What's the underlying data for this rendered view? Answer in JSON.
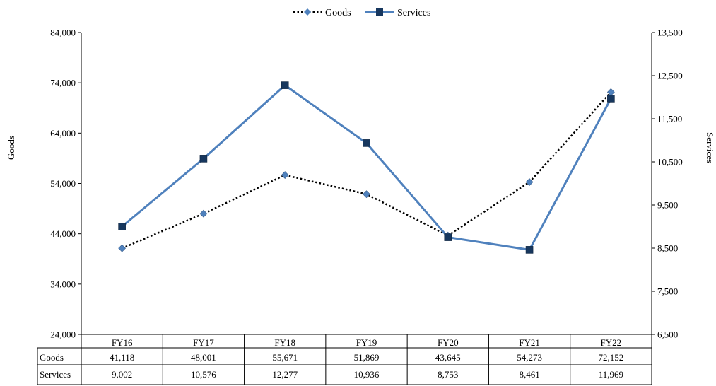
{
  "chart_data": {
    "type": "line",
    "categories": [
      "FY16",
      "FY17",
      "FY18",
      "FY19",
      "FY20",
      "FY21",
      "FY22"
    ],
    "series": [
      {
        "name": "Goods",
        "axis": "left",
        "values": [
          41118,
          48001,
          55671,
          51869,
          43645,
          54273,
          72152
        ],
        "color": "#000000",
        "line_style": "dotted",
        "marker": "diamond",
        "marker_color": "#4F81BD"
      },
      {
        "name": "Services",
        "axis": "right",
        "values": [
          9002,
          10576,
          12277,
          10936,
          8753,
          8461,
          11969
        ],
        "color": "#4F81BD",
        "line_style": "solid",
        "marker": "square",
        "marker_color": "#17375E"
      }
    ],
    "ylabel_left": "Goods",
    "ylabel_right": "Services",
    "ylim_left": [
      24000,
      84000
    ],
    "yticks_left": [
      "24,000",
      "34,000",
      "44,000",
      "54,000",
      "64,000",
      "74,000",
      "84,000"
    ],
    "ylim_right": [
      6500,
      13500
    ],
    "yticks_right": [
      "6,500",
      "7,500",
      "8,500",
      "9,500",
      "10,500",
      "11,500",
      "12,500",
      "13,500"
    ],
    "legend_position": "top-center",
    "grid": false,
    "table": {
      "rows": [
        {
          "label": "Goods",
          "cells": [
            "41,118",
            "48,001",
            "55,671",
            "51,869",
            "43,645",
            "54,273",
            "72,152"
          ]
        },
        {
          "label": "Services",
          "cells": [
            "9,002",
            "10,576",
            "12,277",
            "10,936",
            "8,753",
            "8,461",
            "11,969"
          ]
        }
      ]
    }
  }
}
